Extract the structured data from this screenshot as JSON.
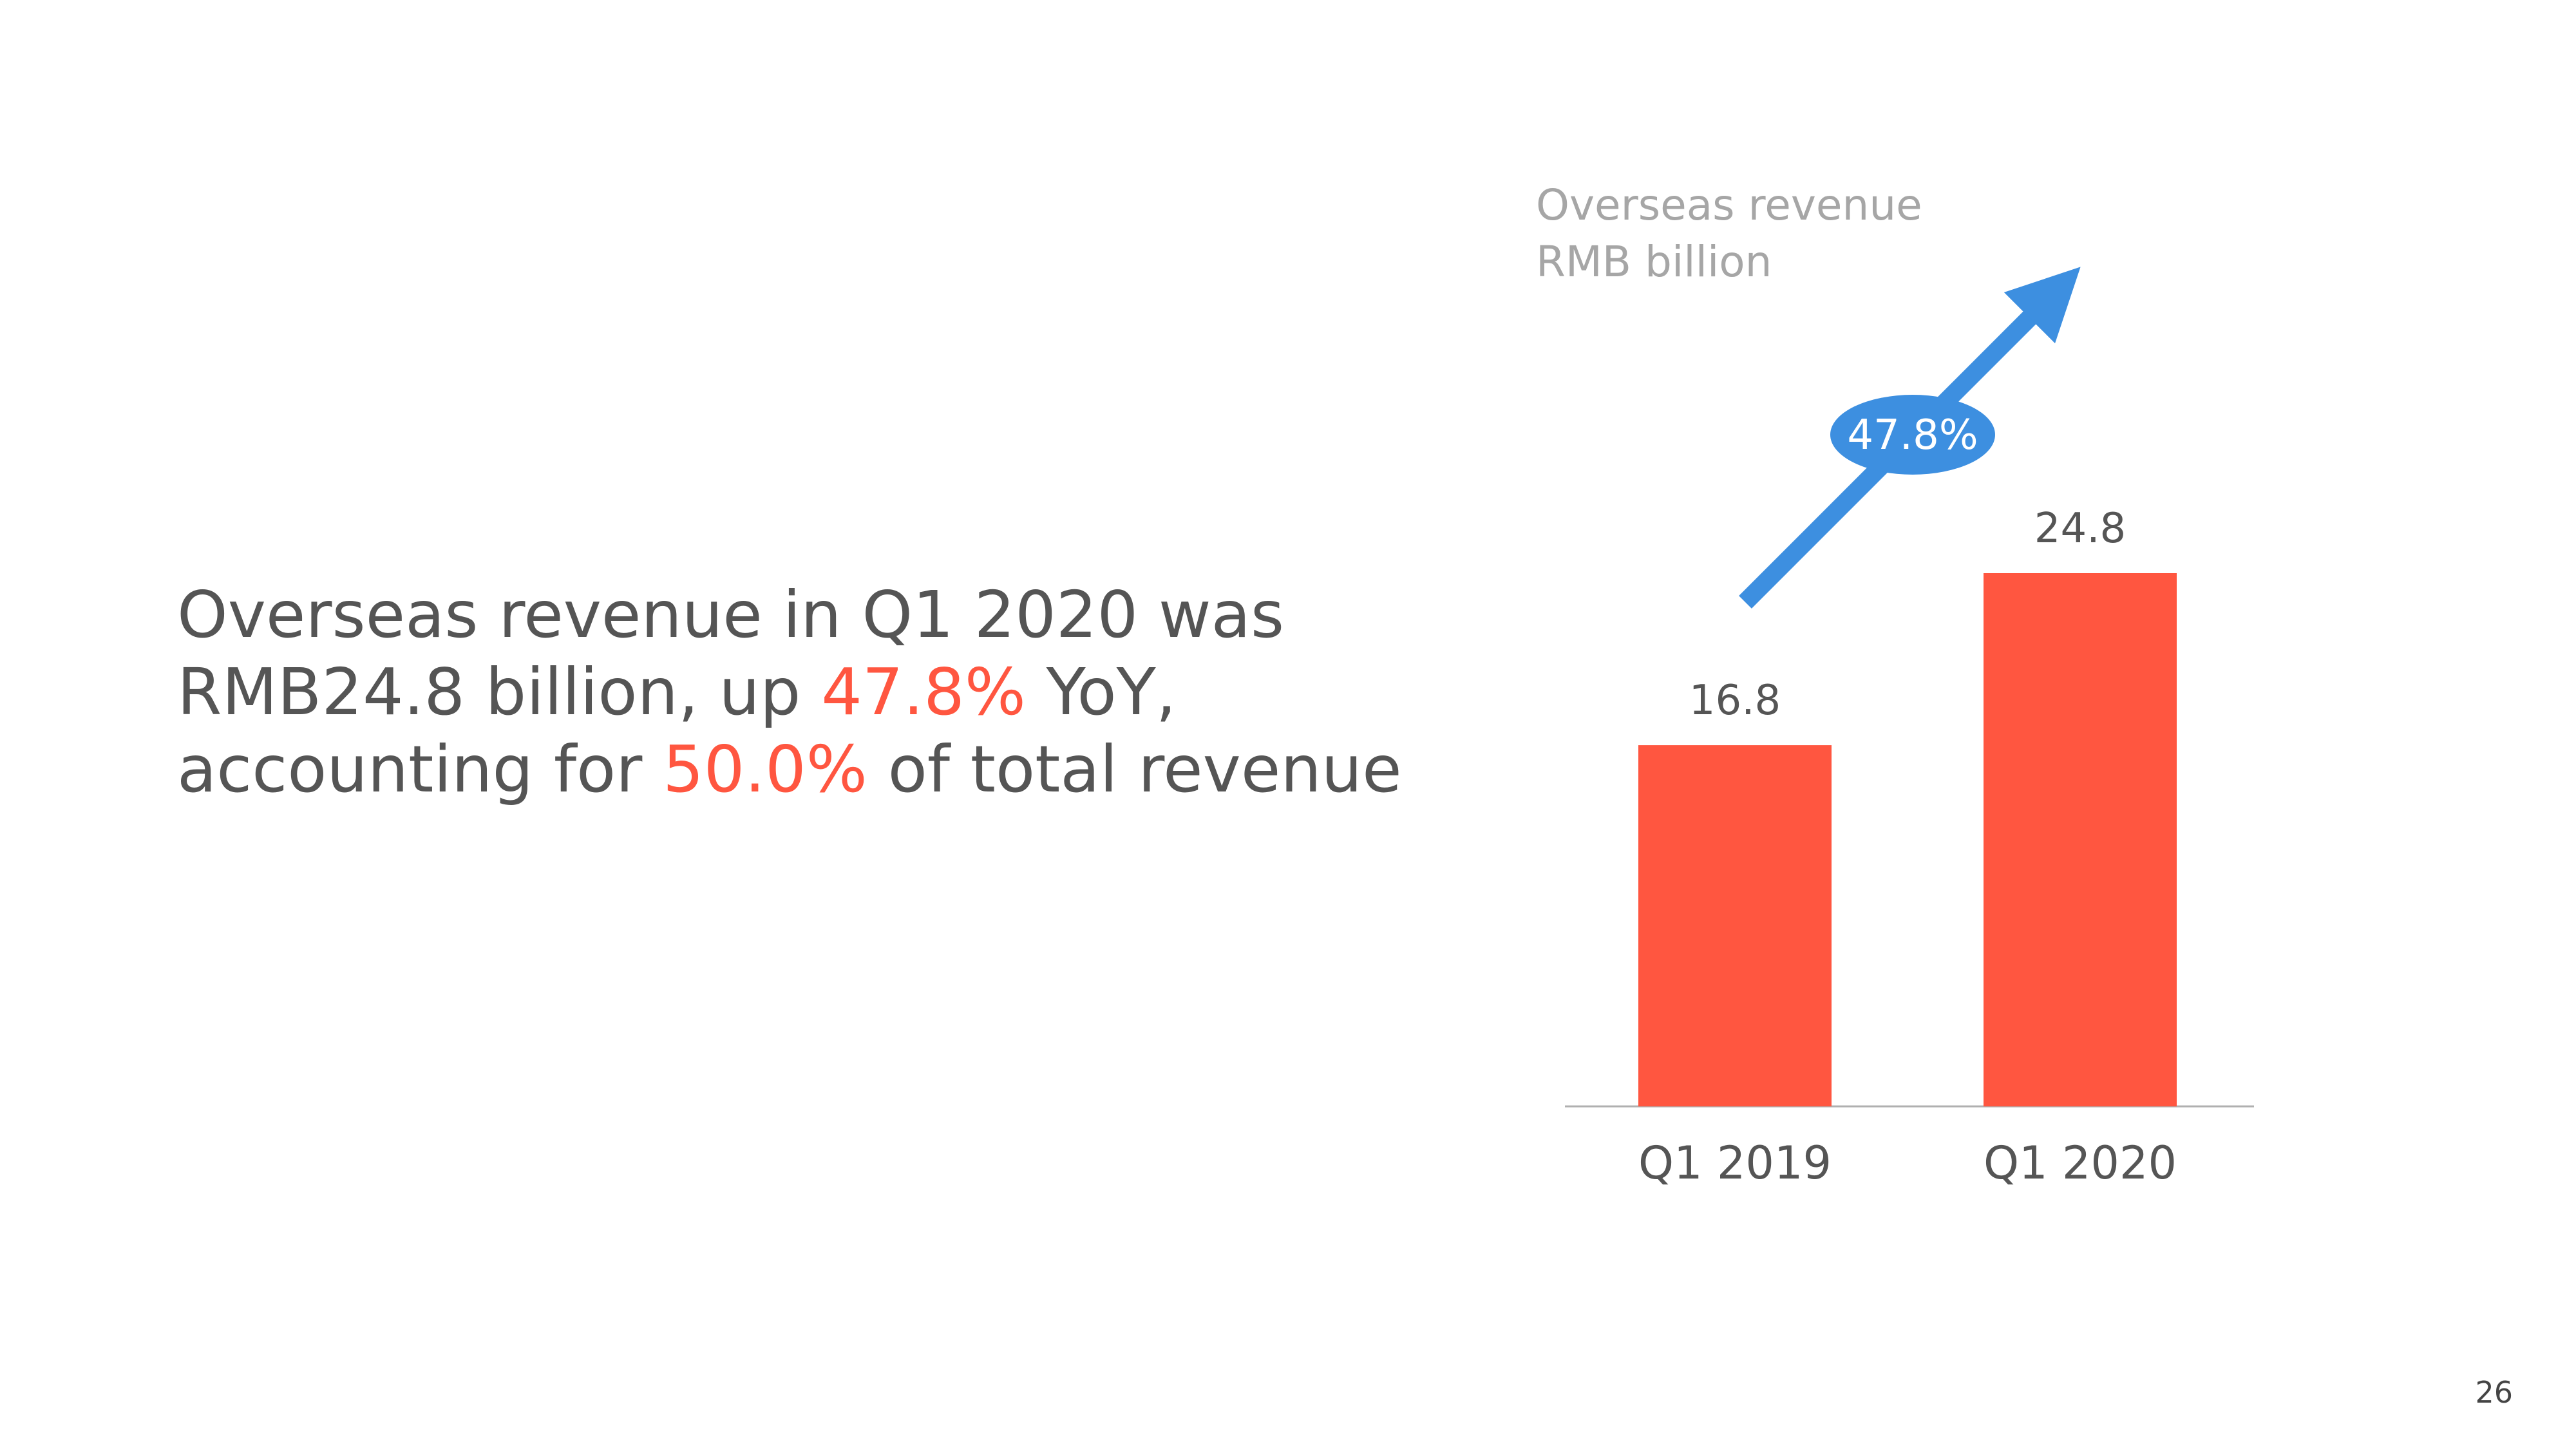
{
  "headline": {
    "line1": "Overseas revenue in Q1 2020 was",
    "line2_prefix": "RMB24.8 billion, up ",
    "line2_highlight": "47.8%",
    "line2_suffix": " YoY,",
    "line3_prefix": "accounting for ",
    "line3_highlight": "50.0%",
    "line3_suffix": " of total revenue"
  },
  "chart_data": {
    "type": "bar",
    "title": "Overseas revenue",
    "subtitle": "RMB billion",
    "categories": [
      "Q1 2019",
      "Q1 2020"
    ],
    "values": [
      16.8,
      24.8
    ],
    "value_labels": [
      "16.8",
      "24.8"
    ],
    "xlabel": "",
    "ylabel": "",
    "ylim": [
      0,
      24.8
    ],
    "grid": false,
    "legend": "none",
    "growth_annotation": "47.8%"
  },
  "colors": {
    "bar": "#ff5640",
    "highlight": "#ff5640",
    "arrow": "#3d8fe0",
    "text": "#555555",
    "title": "#a6a6a6",
    "axis": "#b0b0b0"
  },
  "page_number": "26"
}
